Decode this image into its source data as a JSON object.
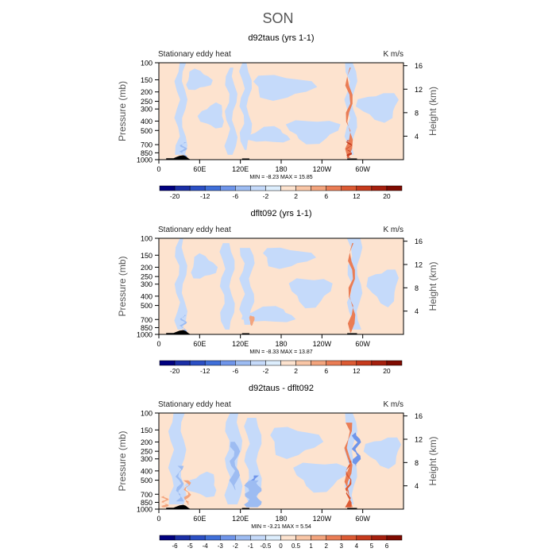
{
  "figure_title": "SON",
  "colors": {
    "neg": [
      "#00007f",
      "#1a2ea6",
      "#2b4fc4",
      "#3f6fd9",
      "#6f95ea",
      "#9dbcf2",
      "#c5dafa",
      "#ddeefd"
    ],
    "pos": [
      "#fde3cf",
      "#f9c6a6",
      "#f3a47d",
      "#ea7d55",
      "#dc5a33",
      "#c63a1c",
      "#a51f0d",
      "#7f0a00"
    ],
    "base_neg": "#d5e7fb",
    "base_pos": "#fde3cf",
    "topo": "#000000"
  },
  "chart_data": [
    {
      "type": "heatmap",
      "title": "d92taus (yrs 1-1)",
      "left_label": "Stationary eddy heat",
      "right_label": "K m/s",
      "ylabel": "Pressure (mb)",
      "y2label": "Height (km)",
      "x_ticks": [
        "0",
        "60E",
        "120E",
        "180",
        "120W",
        "60W"
      ],
      "y_ticks": [
        "100",
        "150",
        "200",
        "250",
        "300",
        "400",
        "500",
        "700",
        "850",
        "1000"
      ],
      "y2_ticks": [
        "4",
        "8",
        "12",
        "16"
      ],
      "stats": "MIN = -8.23  MAX = 15.85",
      "min": -8.23,
      "max": 15.85,
      "colorbar_labels": [
        "-20",
        "-12",
        "-6",
        "-2",
        "2",
        "6",
        "12",
        "20"
      ],
      "colorbar_levels": [
        -24,
        -20,
        -16,
        -12,
        -9,
        -6,
        -4,
        -2,
        0,
        2,
        4,
        6,
        9,
        12,
        16,
        20,
        24
      ]
    },
    {
      "type": "heatmap",
      "title": "dflt092 (yrs 1-1)",
      "left_label": "Stationary eddy heat",
      "right_label": "K m/s",
      "ylabel": "Pressure (mb)",
      "y2label": "Height (km)",
      "x_ticks": [
        "0",
        "60E",
        "120E",
        "180",
        "120W",
        "60W"
      ],
      "y_ticks": [
        "100",
        "150",
        "200",
        "250",
        "300",
        "400",
        "500",
        "700",
        "850",
        "1000"
      ],
      "y2_ticks": [
        "4",
        "8",
        "12",
        "16"
      ],
      "stats": "MIN = -8.33  MAX = 13.87",
      "min": -8.33,
      "max": 13.87,
      "colorbar_labels": [
        "-20",
        "-12",
        "-6",
        "-2",
        "2",
        "6",
        "12",
        "20"
      ],
      "colorbar_levels": [
        -24,
        -20,
        -16,
        -12,
        -9,
        -6,
        -4,
        -2,
        0,
        2,
        4,
        6,
        9,
        12,
        16,
        20,
        24
      ]
    },
    {
      "type": "heatmap",
      "title": "d92taus - dflt092",
      "left_label": "Stationary eddy heat",
      "right_label": "K m/s",
      "ylabel": "Pressure (mb)",
      "y2label": "Height (km)",
      "x_ticks": [
        "0",
        "60E",
        "120E",
        "180",
        "120W",
        "60W"
      ],
      "y_ticks": [
        "100",
        "150",
        "200",
        "250",
        "300",
        "400",
        "500",
        "700",
        "850",
        "1000"
      ],
      "y2_ticks": [
        "4",
        "8",
        "12",
        "16"
      ],
      "stats": "MIN = -3.21  MAX = 5.54",
      "min": -3.21,
      "max": 5.54,
      "colorbar_labels": [
        "-6",
        "-5",
        "-4",
        "-3",
        "-2",
        "-1",
        "-0.5",
        "0",
        "0.5",
        "1",
        "2",
        "3",
        "4",
        "5",
        "6"
      ],
      "colorbar_levels": [
        -7,
        -6,
        -5,
        -4,
        -3,
        -2,
        -1,
        -0.5,
        0,
        0.5,
        1,
        2,
        3,
        4,
        5,
        6,
        7
      ]
    }
  ]
}
